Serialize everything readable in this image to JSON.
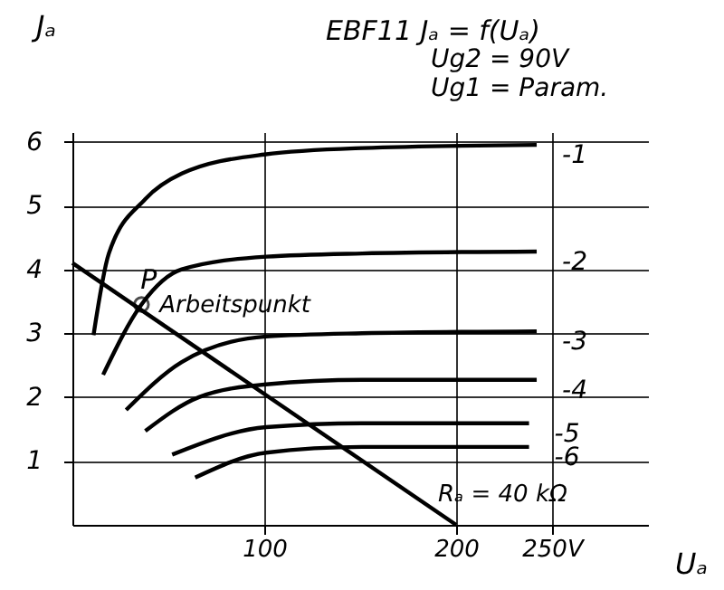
{
  "chart_data": {
    "type": "line",
    "title": "EBF11   Jₐ = f(Uₐ)",
    "subtitle": [
      "Ug2 = 90V",
      "Ug1 = Param."
    ],
    "xlabel": "Uₐ",
    "ylabel": "Jₐ",
    "xlim": [
      0,
      300
    ],
    "ylim": [
      0,
      6.15
    ],
    "xticks": [
      100,
      200,
      {
        "value": 250,
        "label": "250V"
      }
    ],
    "yticks": [
      1,
      2,
      3,
      4,
      5,
      6
    ],
    "grid": true,
    "line_style": "solid",
    "series": [
      {
        "name": "-1",
        "color": "#000000",
        "x": [
          11,
          19,
          38,
          57,
          100,
          151,
          242
        ],
        "values": [
          2.97,
          4.25,
          5.1,
          5.5,
          5.8,
          5.9,
          5.95
        ]
      },
      {
        "name": "-2",
        "color": "#000000",
        "x": [
          16,
          36,
          57,
          101,
          151,
          242
        ],
        "values": [
          2.35,
          3.45,
          4.0,
          4.2,
          4.25,
          4.28
        ]
      },
      {
        "name": "-3",
        "color": "#000000",
        "x": [
          28,
          57,
          101,
          151,
          242
        ],
        "values": [
          1.8,
          2.55,
          2.95,
          3.0,
          3.03
        ]
      },
      {
        "name": "-4",
        "color": "#000000",
        "x": [
          38,
          66,
          101,
          151,
          242
        ],
        "values": [
          1.47,
          2.0,
          2.2,
          2.27,
          2.27
        ]
      },
      {
        "name": "-5",
        "color": "#000000",
        "x": [
          52,
          101,
          151,
          238
        ],
        "values": [
          1.1,
          1.53,
          1.59,
          1.59
        ]
      },
      {
        "name": "-6",
        "color": "#000000",
        "x": [
          64,
          101,
          151,
          238
        ],
        "values": [
          0.74,
          1.13,
          1.22,
          1.22
        ]
      },
      {
        "type": "line",
        "color": "#000000",
        "x": [
          0,
          200
        ],
        "values": [
          4.1,
          0
        ]
      },
      {
        "type": "scatter",
        "color": "#000000",
        "marker": "circle",
        "x": [
          36
        ],
        "values": [
          3.45
        ]
      }
    ],
    "annotations": [
      "P",
      "Arbeitspunkt",
      "Rₐ = 40 kΩ"
    ]
  }
}
